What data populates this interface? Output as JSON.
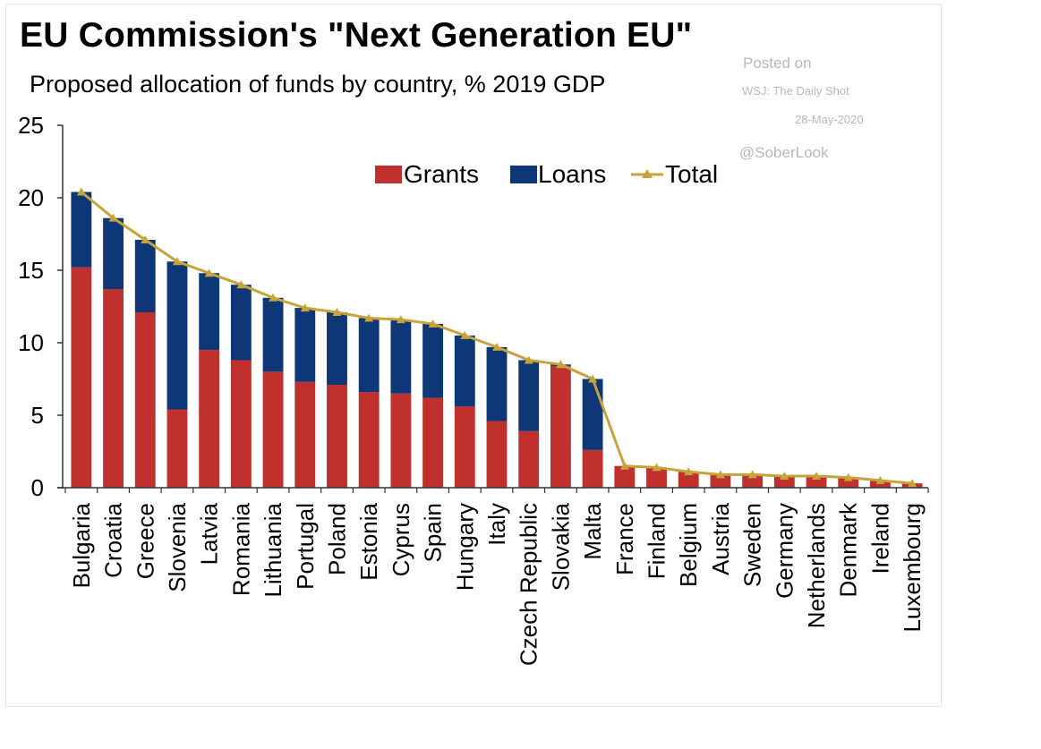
{
  "header": {
    "title": "EU Commission's \"Next Generation EU\"",
    "subtitle": "Proposed allocation of funds by country, % 2019 GDP"
  },
  "credits": {
    "posted": "Posted on",
    "source": "WSJ: The Daily Shot",
    "date": "28-May-2020",
    "handle": "@SoberLook"
  },
  "colors": {
    "grants": "#c0302d",
    "loans": "#0e3777",
    "total": "#c8a33a",
    "axis": "#333333"
  },
  "chart_data": {
    "type": "bar",
    "stacked": true,
    "title": "EU Commission's \"Next Generation EU\"",
    "subtitle": "Proposed allocation of funds by country, % 2019 GDP",
    "xlabel": "",
    "ylabel": "",
    "ylim": [
      0,
      25
    ],
    "yticks": [
      "0",
      "5",
      "10",
      "15",
      "20",
      "25"
    ],
    "grid": false,
    "legend_position": "top-center",
    "categories": [
      "Bulgaria",
      "Croatia",
      "Greece",
      "Slovenia",
      "Latvia",
      "Romania",
      "Lithuania",
      "Portugal",
      "Poland",
      "Estonia",
      "Cyprus",
      "Spain",
      "Hungary",
      "Italy",
      "Czech Republic",
      "Slovakia",
      "Malta",
      "France",
      "Finland",
      "Belgium",
      "Austria",
      "Sweden",
      "Germany",
      "Netherlands",
      "Denmark",
      "Ireland",
      "Luxembourg"
    ],
    "series": [
      {
        "name": "Grants",
        "kind": "bar",
        "values": [
          15.2,
          13.7,
          12.1,
          5.4,
          9.5,
          8.8,
          8.0,
          7.3,
          7.1,
          6.6,
          6.5,
          6.2,
          5.6,
          4.6,
          3.9,
          8.4,
          2.6,
          1.5,
          1.4,
          1.1,
          0.9,
          0.9,
          0.8,
          0.8,
          0.7,
          0.5,
          0.3
        ]
      },
      {
        "name": "Loans",
        "kind": "bar",
        "values": [
          5.2,
          4.9,
          5.0,
          10.2,
          5.3,
          5.2,
          5.1,
          5.1,
          5.0,
          5.1,
          5.1,
          5.1,
          4.9,
          5.1,
          4.9,
          0.1,
          4.9,
          0.0,
          0.0,
          0.0,
          0.0,
          0.0,
          0.0,
          0.0,
          0.0,
          0.0,
          0.0
        ]
      },
      {
        "name": "Total",
        "kind": "line",
        "values": [
          20.4,
          18.6,
          17.1,
          15.6,
          14.8,
          14.0,
          13.1,
          12.4,
          12.1,
          11.7,
          11.6,
          11.3,
          10.5,
          9.7,
          8.8,
          8.5,
          7.5,
          1.5,
          1.4,
          1.1,
          0.9,
          0.9,
          0.8,
          0.8,
          0.7,
          0.5,
          0.3
        ]
      }
    ]
  }
}
